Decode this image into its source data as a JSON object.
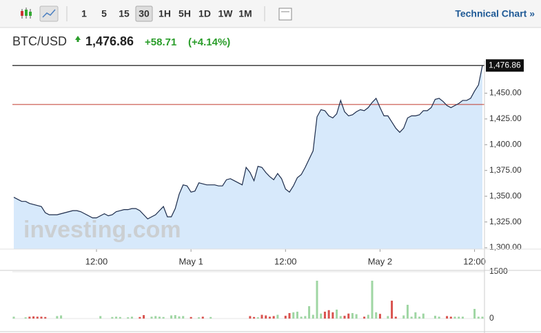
{
  "toolbar": {
    "intervals": [
      "1",
      "5",
      "15",
      "30",
      "1H",
      "5H",
      "1D",
      "1W",
      "1M"
    ],
    "active_interval": 3,
    "link": "Technical Chart »"
  },
  "header": {
    "symbol": "BTC/USD",
    "price": "1,476.86",
    "change": "+58.71",
    "change_pct": "(+4.14%)"
  },
  "watermark": "investing.com",
  "chart_data": [
    {
      "type": "area",
      "color": "#1c2b4a",
      "fill": "#d7e9fb",
      "xlim": [
        0,
        119
      ],
      "xticks": [
        {
          "value": 21,
          "label": "12:00"
        },
        {
          "value": 45,
          "label": "May 1"
        },
        {
          "value": 69,
          "label": "12:00"
        },
        {
          "value": 93,
          "label": "May 2"
        },
        {
          "value": 117,
          "label": "12:00"
        }
      ],
      "ylim": [
        1298.7,
        1477
      ],
      "yticks": [
        {
          "value": 1300,
          "label": "1,300.00"
        },
        {
          "value": 1325,
          "label": "1,325.00"
        },
        {
          "value": 1350,
          "label": "1,350.00"
        },
        {
          "value": 1375,
          "label": "1,375.00"
        },
        {
          "value": 1400,
          "label": "1,400.00"
        },
        {
          "value": 1425,
          "label": "1,425.00"
        },
        {
          "value": 1450,
          "label": "1,450.00"
        }
      ],
      "reference_line": 1439,
      "reference_color": "#c0392b",
      "values": [
        1349,
        1347,
        1345,
        1345,
        1343,
        1342,
        1341,
        1340,
        1334,
        1332,
        1332,
        1332,
        1333,
        1334,
        1335,
        1336,
        1336,
        1335,
        1333,
        1331,
        1329,
        1329,
        1331,
        1333,
        1331,
        1332,
        1335,
        1336,
        1337,
        1337,
        1338,
        1338,
        1336,
        1332,
        1328,
        1330,
        1332,
        1336,
        1340,
        1330,
        1330,
        1338,
        1352,
        1361,
        1360,
        1354,
        1355,
        1363,
        1362,
        1361,
        1361,
        1361,
        1360,
        1360,
        1366,
        1367,
        1365,
        1363,
        1361,
        1378,
        1373,
        1365,
        1379,
        1378,
        1373,
        1369,
        1366,
        1372,
        1367,
        1357,
        1354,
        1360,
        1368,
        1371,
        1378,
        1386,
        1394,
        1427,
        1434,
        1433,
        1428,
        1426,
        1430,
        1443,
        1432,
        1428,
        1429,
        1432,
        1434,
        1433,
        1436,
        1441,
        1445,
        1436,
        1428,
        1428,
        1422,
        1416,
        1412,
        1416,
        1426,
        1428,
        1428,
        1429,
        1433,
        1433,
        1436,
        1444,
        1445,
        1442,
        1438,
        1436,
        1438,
        1440,
        1443,
        1443,
        1445,
        1452,
        1458,
        1476.86
      ]
    },
    {
      "type": "bar",
      "up_color": "#9fd6a3",
      "down_color": "#d9534f",
      "ylim": [
        0,
        1500
      ],
      "yticks": [
        0,
        1500
      ],
      "values": [
        60,
        0,
        0,
        40,
        60,
        70,
        60,
        60,
        50,
        0,
        0,
        80,
        100,
        0,
        0,
        0,
        0,
        0,
        0,
        0,
        0,
        0,
        80,
        0,
        0,
        50,
        60,
        50,
        0,
        40,
        60,
        0,
        50,
        110,
        0,
        60,
        80,
        60,
        50,
        0,
        100,
        110,
        70,
        80,
        0,
        50,
        0,
        40,
        60,
        0,
        50,
        0,
        0,
        0,
        0,
        0,
        0,
        0,
        0,
        0,
        80,
        50,
        40,
        120,
        100,
        60,
        80,
        120,
        0,
        90,
        176,
        200,
        220,
        60,
        80,
        397,
        120,
        1213,
        160,
        220,
        270,
        200,
        287,
        80,
        90,
        160,
        176,
        140,
        0,
        60,
        120,
        1213,
        200,
        150,
        0,
        80,
        573,
        60,
        0,
        100,
        441,
        60,
        200,
        60,
        160,
        0,
        0,
        90,
        60,
        0,
        80,
        60,
        60,
        60,
        60,
        0,
        0,
        309,
        60,
        60
      ]
    }
  ]
}
